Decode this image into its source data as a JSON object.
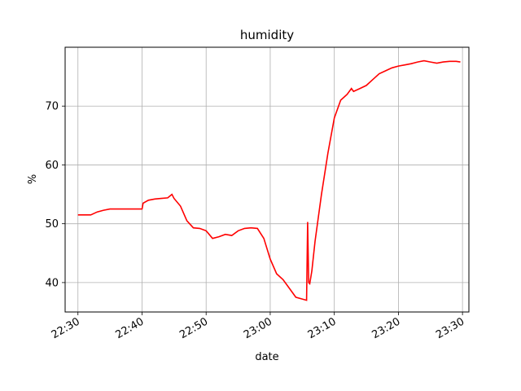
{
  "chart_data": {
    "type": "line",
    "title": "humidity",
    "xlabel": "date",
    "ylabel": "%",
    "xlim": [
      "22:28",
      "23:31"
    ],
    "ylim": [
      35,
      80
    ],
    "grid": true,
    "line_color": "#ff0000",
    "grid_color": "#b0b0b0",
    "x_ticks": [
      "22:30",
      "22:40",
      "22:50",
      "23:00",
      "23:10",
      "23:20",
      "23:30"
    ],
    "y_ticks": [
      40,
      50,
      60,
      70
    ],
    "series": [
      {
        "x": [
          "22:30:00",
          "22:31:00",
          "22:32:00",
          "22:33:00",
          "22:34:00",
          "22:35:00",
          "22:40:00",
          "22:40:10",
          "22:41:00",
          "22:42:00",
          "22:43:00",
          "22:44:00",
          "22:44:40",
          "22:45:00",
          "22:46:00",
          "22:47:00",
          "22:48:00",
          "22:49:00",
          "22:50:00",
          "22:51:00",
          "22:52:00",
          "22:53:00",
          "22:54:00",
          "22:55:00",
          "22:56:00",
          "22:57:00",
          "22:58:00",
          "22:59:00",
          "23:00:00",
          "23:01:00",
          "23:02:00",
          "23:03:00",
          "23:04:00",
          "23:05:00",
          "23:05:40",
          "23:05:50",
          "23:06:00",
          "23:06:10",
          "23:06:30",
          "23:07:00",
          "23:08:00",
          "23:09:00",
          "23:10:00",
          "23:11:00",
          "23:12:00",
          "23:12:40",
          "23:13:00",
          "23:14:00",
          "23:15:00",
          "23:16:00",
          "23:17:00",
          "23:18:00",
          "23:19:00",
          "23:20:00",
          "23:21:00",
          "23:22:00",
          "23:23:00",
          "23:24:00",
          "23:25:00",
          "23:26:00",
          "23:27:00",
          "23:28:00",
          "23:29:00",
          "23:29:40"
        ],
        "y": [
          51.5,
          51.5,
          51.5,
          52.0,
          52.3,
          52.5,
          52.5,
          53.5,
          54.0,
          54.2,
          54.3,
          54.4,
          55.0,
          54.3,
          53.0,
          50.5,
          49.3,
          49.2,
          48.8,
          47.5,
          47.8,
          48.2,
          48.0,
          48.8,
          49.2,
          49.3,
          49.2,
          47.5,
          44.0,
          41.5,
          40.5,
          39.0,
          37.5,
          37.2,
          37.0,
          50.3,
          40.0,
          39.8,
          42.0,
          47.0,
          55.0,
          62.0,
          68.0,
          71.0,
          72.0,
          73.0,
          72.5,
          73.0,
          73.5,
          74.5,
          75.5,
          76.0,
          76.5,
          76.8,
          77.0,
          77.2,
          77.5,
          77.7,
          77.5,
          77.3,
          77.5,
          77.6,
          77.6,
          77.5
        ]
      }
    ]
  }
}
